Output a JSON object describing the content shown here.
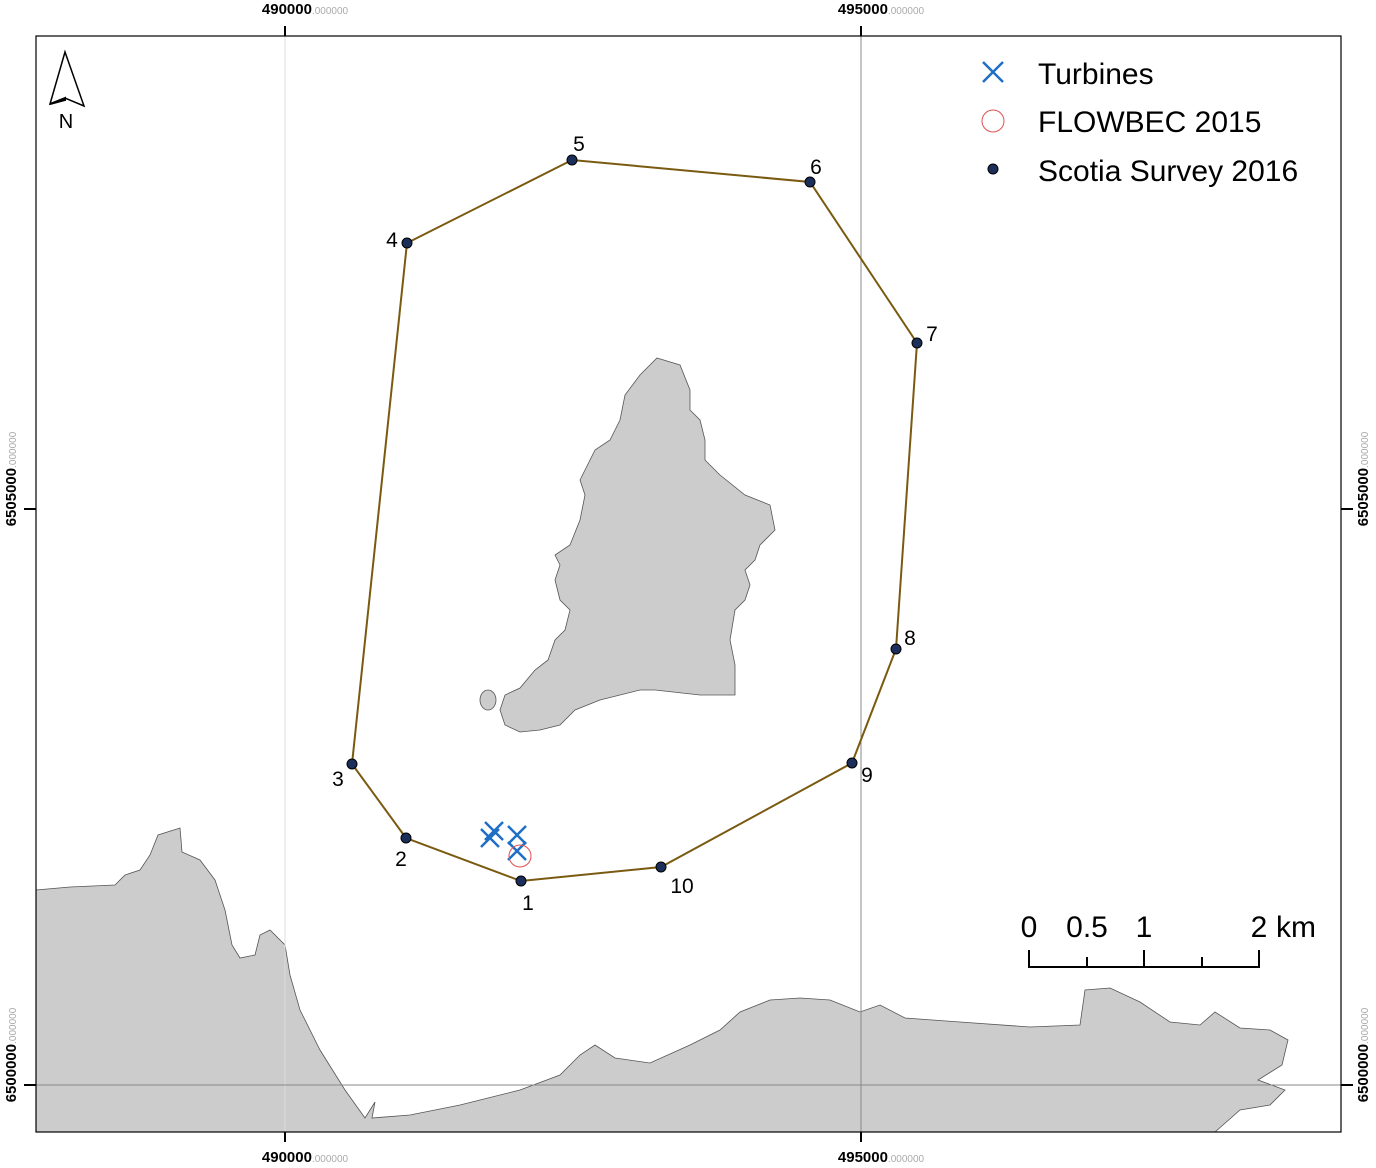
{
  "north_label": "N",
  "legend": [
    {
      "label": "Turbines"
    },
    {
      "label": "FLOWBEC 2015"
    },
    {
      "label": "Scotia Survey 2016"
    }
  ],
  "scale_bar": {
    "labels": [
      "0",
      "0.5",
      "1",
      "2"
    ],
    "unit": "km"
  },
  "survey_points": [
    {
      "label": "1"
    },
    {
      "label": "2"
    },
    {
      "label": "3"
    },
    {
      "label": "4"
    },
    {
      "label": "5"
    },
    {
      "label": "6"
    },
    {
      "label": "7"
    },
    {
      "label": "8"
    },
    {
      "label": "9"
    },
    {
      "label": "10"
    }
  ],
  "grid_labels": {
    "top": [
      {
        "main": "490000",
        "suffix": ".000000"
      },
      {
        "main": "495000",
        "suffix": ".000000"
      }
    ],
    "bottom": [
      {
        "main": "490000",
        "suffix": ".000000"
      },
      {
        "main": "495000",
        "suffix": ".000000"
      }
    ],
    "left": [
      {
        "main": "6505000",
        "suffix": ".000000"
      },
      {
        "main": "6500000",
        "suffix": ".000000"
      }
    ],
    "right": [
      {
        "main": "6505000",
        "suffix": ".000000"
      },
      {
        "main": "6500000",
        "suffix": ".000000"
      }
    ]
  }
}
